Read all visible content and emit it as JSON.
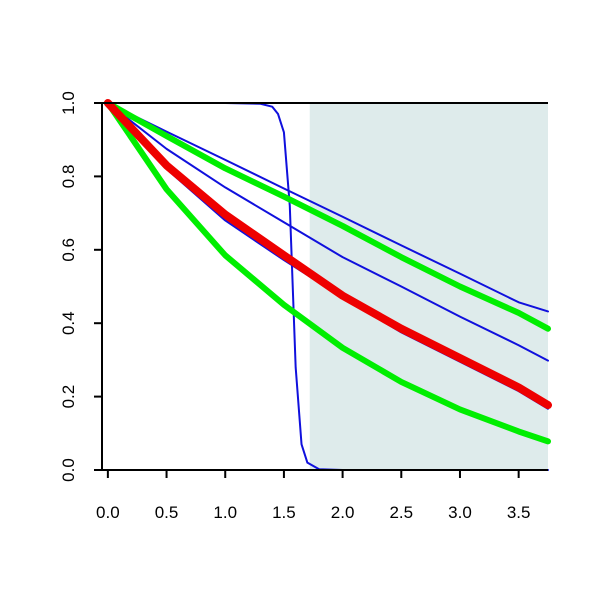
{
  "chart_data": {
    "type": "line",
    "title": "",
    "xlabel": "",
    "ylabel": "",
    "xlim": [
      -0.05,
      3.75
    ],
    "ylim": [
      0.0,
      1.0
    ],
    "x_ticks": [
      "0.0",
      "0.5",
      "1.0",
      "1.5",
      "2.0",
      "2.5",
      "3.0",
      "3.5"
    ],
    "y_ticks": [
      "0.0",
      "0.2",
      "0.4",
      "0.6",
      "0.8",
      "1.0"
    ],
    "grid": false,
    "legend": "none",
    "shaded_region": {
      "x_start": 1.72,
      "x_end": 3.75,
      "y_start": 0.0,
      "y_end": 1.0,
      "color": "#deebeb"
    },
    "series": [
      {
        "color": "#1010dd",
        "width": 2,
        "x": [
          0,
          0.5,
          1.0,
          1.5,
          2.0,
          2.5,
          3.0,
          3.5,
          3.75
        ],
        "y": [
          1.0,
          0.922,
          0.845,
          0.767,
          0.69,
          0.612,
          0.535,
          0.457,
          0.432
        ]
      },
      {
        "color": "#1010dd",
        "width": 2,
        "x": [
          0,
          0.5,
          1.0,
          1.5,
          2.0,
          2.5,
          3.0,
          3.5,
          3.75
        ],
        "y": [
          1.0,
          0.875,
          0.77,
          0.675,
          0.58,
          0.5,
          0.418,
          0.34,
          0.298
        ]
      },
      {
        "color": "#1010dd",
        "width": 2,
        "x": [
          0,
          0.5,
          1.0,
          1.5,
          2.0,
          2.5,
          3.0,
          3.5,
          3.75
        ],
        "y": [
          1.0,
          0.82,
          0.68,
          0.572,
          0.47,
          0.375,
          0.295,
          0.215,
          0.167
        ]
      },
      {
        "color": "#1010dd",
        "width": 2,
        "x": [
          0,
          1.0,
          1.3,
          1.4,
          1.45,
          1.5,
          1.55,
          1.6,
          1.65,
          1.7,
          1.8,
          2.0,
          3.75
        ],
        "y": [
          1.0,
          1.0,
          0.998,
          0.99,
          0.97,
          0.92,
          0.72,
          0.28,
          0.07,
          0.02,
          0.002,
          0.0,
          0.0
        ]
      },
      {
        "color": "#00ee00",
        "width": 6,
        "x": [
          0,
          0.5,
          1.0,
          1.5,
          2.0,
          2.5,
          3.0,
          3.5,
          3.75
        ],
        "y": [
          1.0,
          0.91,
          0.822,
          0.745,
          0.665,
          0.58,
          0.5,
          0.428,
          0.385
        ]
      },
      {
        "color": "#00ee00",
        "width": 6,
        "x": [
          0,
          0.5,
          1.0,
          1.5,
          2.0,
          2.5,
          3.0,
          3.5,
          3.75
        ],
        "y": [
          1.0,
          0.765,
          0.585,
          0.45,
          0.333,
          0.24,
          0.165,
          0.105,
          0.078
        ]
      },
      {
        "color": "#ee0000",
        "width": 8,
        "x": [
          0,
          0.5,
          1.0,
          1.5,
          2.0,
          2.5,
          3.0,
          3.5,
          3.75
        ],
        "y": [
          1.0,
          0.83,
          0.696,
          0.585,
          0.475,
          0.385,
          0.305,
          0.225,
          0.177
        ]
      }
    ]
  }
}
